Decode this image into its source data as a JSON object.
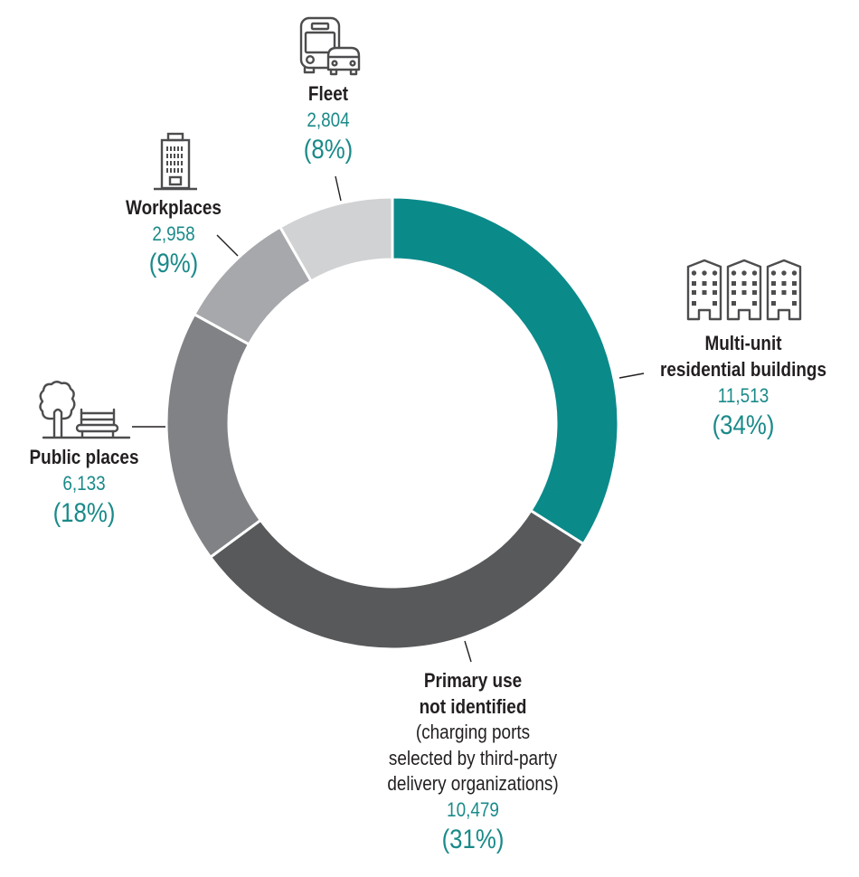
{
  "chart_data": {
    "type": "pie",
    "variant": "donut",
    "title": "",
    "categories": [
      "Multi-unit residential buildings",
      "Primary use not identified (charging ports selected by third-party delivery organizations)",
      "Public places",
      "Workplaces",
      "Fleet"
    ],
    "values": [
      11513,
      10479,
      6133,
      2958,
      2804
    ],
    "percentages": [
      34,
      31,
      18,
      9,
      8
    ],
    "colors": [
      "#0b8a8a",
      "#58595b",
      "#818285",
      "#a7a8ab",
      "#d1d2d4"
    ],
    "start_angle_deg": 0,
    "direction": "clockwise",
    "center": [
      434,
      468
    ],
    "outer_radius": 250,
    "inner_radius": 181
  },
  "segments": {
    "multi_unit": {
      "label_lines": [
        "Multi-unit",
        "residential buildings"
      ],
      "value": "11,513",
      "percent": "(34%)"
    },
    "primary": {
      "label_lines": [
        "Primary use",
        "not identified"
      ],
      "note_lines": [
        "(charging ports",
        "selected by third-party",
        "delivery organizations)"
      ],
      "value": "10,479",
      "percent": "(31%)"
    },
    "public": {
      "label_lines": [
        "Public places"
      ],
      "value": "6,133",
      "percent": "(18%)"
    },
    "workplaces": {
      "label_lines": [
        "Workplaces"
      ],
      "value": "2,958",
      "percent": "(9%)"
    },
    "fleet": {
      "label_lines": [
        "Fleet"
      ],
      "value": "2,804",
      "percent": "(8%)"
    }
  }
}
